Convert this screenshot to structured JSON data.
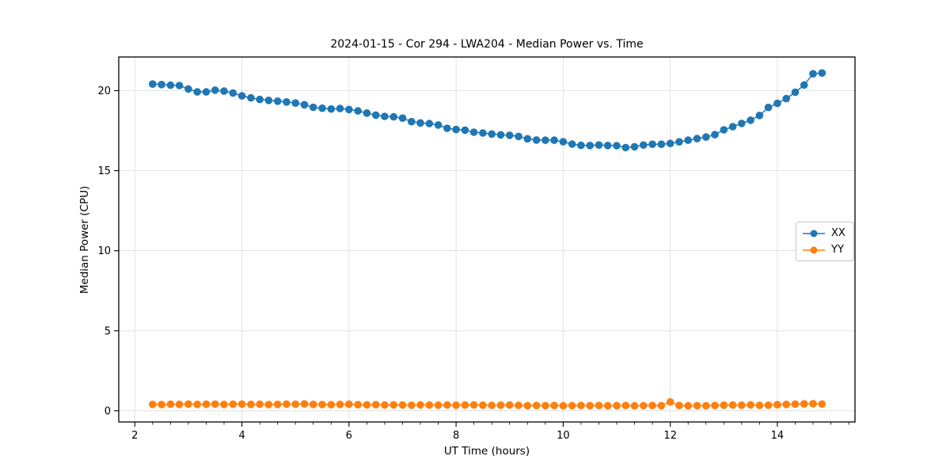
{
  "chart_data": {
    "type": "line",
    "title": "2024-01-15 - Cor 294 - LWA204 - Median Power vs. Time",
    "xlabel": "UT Time (hours)",
    "ylabel": "Median Power (CPU)",
    "xlim": [
      1.7,
      15.45
    ],
    "ylim": [
      -0.7,
      22.1
    ],
    "xticks": [
      2,
      4,
      6,
      8,
      10,
      12,
      14
    ],
    "yticks": [
      0,
      5,
      10,
      15,
      20
    ],
    "x_minor_step": 0.33333,
    "grid": true,
    "legend_position": "center right",
    "series": [
      {
        "name": "XX",
        "color": "#1f77b4",
        "x": [
          2.333,
          2.5,
          2.667,
          2.833,
          3.0,
          3.167,
          3.333,
          3.5,
          3.667,
          3.833,
          4.0,
          4.167,
          4.333,
          4.5,
          4.667,
          4.833,
          5.0,
          5.167,
          5.333,
          5.5,
          5.667,
          5.833,
          6.0,
          6.167,
          6.333,
          6.5,
          6.667,
          6.833,
          7.0,
          7.167,
          7.333,
          7.5,
          7.667,
          7.833,
          8.0,
          8.167,
          8.333,
          8.5,
          8.667,
          8.833,
          9.0,
          9.167,
          9.333,
          9.5,
          9.667,
          9.833,
          10.0,
          10.167,
          10.333,
          10.5,
          10.667,
          10.833,
          11.0,
          11.167,
          11.333,
          11.5,
          11.667,
          11.833,
          12.0,
          12.167,
          12.333,
          12.5,
          12.667,
          12.833,
          13.0,
          13.167,
          13.333,
          13.5,
          13.667,
          13.833,
          14.0,
          14.167,
          14.333,
          14.5,
          14.667,
          14.833
        ],
        "values": [
          20.41,
          20.38,
          20.34,
          20.32,
          20.1,
          19.92,
          19.92,
          20.03,
          19.97,
          19.85,
          19.67,
          19.55,
          19.45,
          19.39,
          19.34,
          19.29,
          19.22,
          19.12,
          18.96,
          18.9,
          18.85,
          18.88,
          18.82,
          18.73,
          18.6,
          18.47,
          18.39,
          18.36,
          18.28,
          18.06,
          17.98,
          17.94,
          17.85,
          17.65,
          17.57,
          17.53,
          17.4,
          17.35,
          17.29,
          17.24,
          17.21,
          17.14,
          16.99,
          16.91,
          16.9,
          16.9,
          16.81,
          16.66,
          16.58,
          16.57,
          16.6,
          16.57,
          16.56,
          16.44,
          16.49,
          16.6,
          16.65,
          16.65,
          16.7,
          16.8,
          16.9,
          17.0,
          17.1,
          17.25,
          17.55,
          17.75,
          17.95,
          18.15,
          18.45,
          18.95,
          19.2,
          19.5,
          19.9,
          20.35,
          21.05,
          21.1
        ]
      },
      {
        "name": "YY",
        "color": "#ff7f0e",
        "x": [
          2.333,
          2.5,
          2.667,
          2.833,
          3.0,
          3.167,
          3.333,
          3.5,
          3.667,
          3.833,
          4.0,
          4.167,
          4.333,
          4.5,
          4.667,
          4.833,
          5.0,
          5.167,
          5.333,
          5.5,
          5.667,
          5.833,
          6.0,
          6.167,
          6.333,
          6.5,
          6.667,
          6.833,
          7.0,
          7.167,
          7.333,
          7.5,
          7.667,
          7.833,
          8.0,
          8.167,
          8.333,
          8.5,
          8.667,
          8.833,
          9.0,
          9.167,
          9.333,
          9.5,
          9.667,
          9.833,
          10.0,
          10.167,
          10.333,
          10.5,
          10.667,
          10.833,
          11.0,
          11.167,
          11.333,
          11.5,
          11.667,
          11.833,
          12.0,
          12.167,
          12.333,
          12.5,
          12.667,
          12.833,
          13.0,
          13.167,
          13.333,
          13.5,
          13.667,
          13.833,
          14.0,
          14.167,
          14.333,
          14.5,
          14.667,
          14.833
        ],
        "values": [
          0.4,
          0.39,
          0.41,
          0.4,
          0.42,
          0.4,
          0.41,
          0.42,
          0.4,
          0.41,
          0.42,
          0.4,
          0.41,
          0.39,
          0.4,
          0.42,
          0.41,
          0.43,
          0.4,
          0.39,
          0.38,
          0.4,
          0.41,
          0.38,
          0.37,
          0.38,
          0.36,
          0.37,
          0.36,
          0.35,
          0.37,
          0.36,
          0.35,
          0.36,
          0.35,
          0.36,
          0.37,
          0.35,
          0.34,
          0.35,
          0.36,
          0.34,
          0.32,
          0.33,
          0.32,
          0.33,
          0.31,
          0.32,
          0.33,
          0.32,
          0.33,
          0.31,
          0.32,
          0.33,
          0.31,
          0.32,
          0.33,
          0.32,
          0.55,
          0.33,
          0.31,
          0.32,
          0.31,
          0.33,
          0.35,
          0.36,
          0.35,
          0.37,
          0.34,
          0.35,
          0.38,
          0.4,
          0.42,
          0.43,
          0.44,
          0.42
        ]
      }
    ]
  },
  "legend": {
    "items": [
      {
        "label": "XX",
        "color": "#1f77b4"
      },
      {
        "label": "YY",
        "color": "#ff7f0e"
      }
    ]
  }
}
